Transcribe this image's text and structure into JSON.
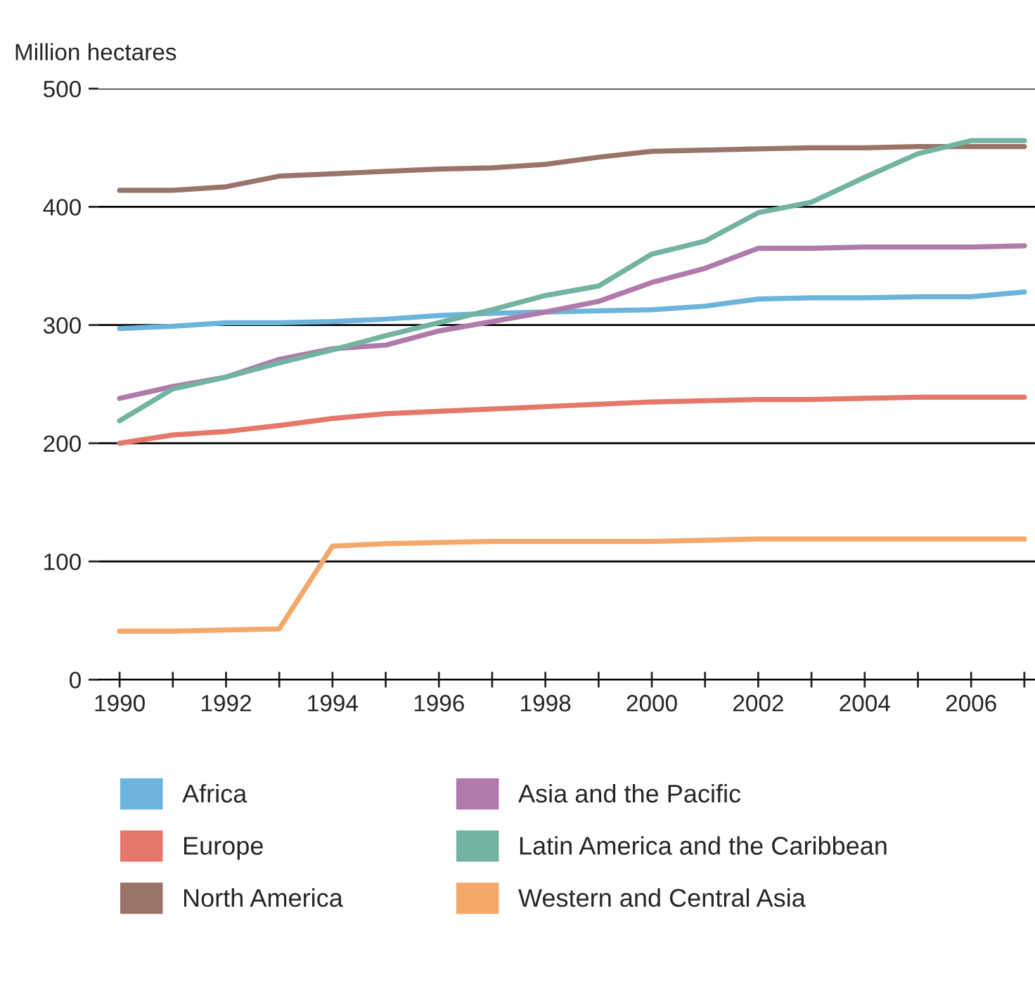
{
  "chart_data": {
    "type": "line",
    "ylabel": "Million hectares",
    "x": [
      1990,
      1991,
      1992,
      1993,
      1994,
      1995,
      1996,
      1997,
      1998,
      1999,
      2000,
      2001,
      2002,
      2003,
      2004,
      2005,
      2006,
      2007
    ],
    "series": [
      {
        "name": "Africa",
        "color": "#6cb4dc",
        "values": [
          297,
          299,
          302,
          302,
          303,
          305,
          308,
          310,
          311,
          312,
          313,
          316,
          322,
          323,
          323,
          324,
          324,
          328
        ]
      },
      {
        "name": "Europe",
        "color": "#e5786a",
        "values": [
          200,
          207,
          210,
          215,
          221,
          225,
          227,
          229,
          231,
          233,
          235,
          236,
          237,
          237,
          238,
          239,
          239,
          239
        ]
      },
      {
        "name": "North America",
        "color": "#9a7469",
        "values": [
          414,
          414,
          417,
          426,
          428,
          430,
          432,
          433,
          436,
          442,
          447,
          448,
          449,
          450,
          450,
          451,
          451,
          451
        ]
      },
      {
        "name": "Asia and the Pacific",
        "color": "#b07aab",
        "values": [
          238,
          248,
          256,
          271,
          280,
          283,
          295,
          303,
          311,
          320,
          336,
          348,
          365,
          365,
          366,
          366,
          366,
          367
        ]
      },
      {
        "name": "Latin America and the Caribbean",
        "color": "#72b3a1",
        "values": [
          219,
          246,
          256,
          268,
          279,
          291,
          302,
          313,
          325,
          333,
          360,
          371,
          395,
          404,
          425,
          445,
          456,
          456
        ]
      },
      {
        "name": "Western and Central Asia",
        "color": "#f4a96b",
        "values": [
          41,
          41,
          42,
          43,
          113,
          115,
          116,
          117,
          117,
          117,
          117,
          118,
          119,
          119,
          119,
          119,
          119,
          119
        ]
      }
    ],
    "xlim": [
      1989.6,
      2007.2
    ],
    "xticks": [
      1990,
      {
        "value": 1991,
        "label": null
      },
      1992,
      {
        "value": 1993,
        "label": null
      },
      1994,
      {
        "value": 1995,
        "label": null
      },
      1996,
      {
        "value": 1997,
        "label": null
      },
      1998,
      {
        "value": 1999,
        "label": null
      },
      2000,
      {
        "value": 2001,
        "label": null
      },
      2002,
      {
        "value": 2003,
        "label": null
      },
      2004,
      {
        "value": 2005,
        "label": null
      },
      2006,
      {
        "value": 2007,
        "label": null
      }
    ],
    "ylim": [
      0,
      500
    ],
    "yticks": [
      0,
      100,
      200,
      300,
      400,
      500
    ],
    "grid": "y",
    "legend": "bottom",
    "marker": "none",
    "line_style": "solid"
  }
}
